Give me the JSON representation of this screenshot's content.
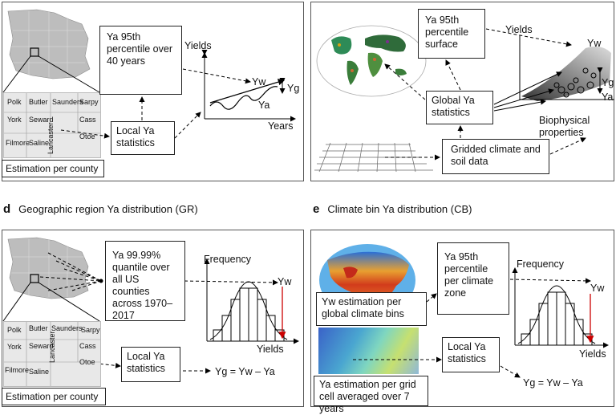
{
  "panel_a": {
    "counties": [
      "Polk",
      "Butler",
      "Saunders",
      "Sarpy",
      "York",
      "Seward",
      "Lancaster",
      "Cass",
      "Otoe",
      "Filmore",
      "Saline"
    ],
    "estimation": "Estimation per county",
    "box_95": "Ya 95th percentile over 40 years",
    "local": "Local Ya statistics",
    "yields": "Yields",
    "years": "Years",
    "yw": "Yw",
    "yg": "Yg",
    "ya": "Ya"
  },
  "panel_b": {
    "surface": "Ya 95th percentile surface",
    "yields": "Yields",
    "yw": "Yw",
    "yg": "Yg",
    "ya": "Ya",
    "global": "Global Ya statistics",
    "biophysical": "Biophysical properties",
    "gridded": "Gridded climate and soil data"
  },
  "panel_d": {
    "letter": "d",
    "title": "Geographic region Ya distribution (GR)",
    "counties": [
      "Polk",
      "Butler",
      "Saunders",
      "Sarpy",
      "York",
      "Seward",
      "Lancaster",
      "Cass",
      "Otoe",
      "Filmore",
      "Saline"
    ],
    "estimation": "Estimation per county",
    "box_9999": "Ya 99.99% quantile over all US counties across 1970–2017",
    "frequency": "Frequency",
    "yw": "Yw",
    "yields": "Yields",
    "local": "Local Ya statistics",
    "eq": "Yg = Yw – Ya"
  },
  "panel_e": {
    "letter": "e",
    "title": "Climate bin Ya distribution (CB)",
    "box_95": "Ya 95th percentile per climate zone",
    "frequency": "Frequency",
    "yw": "Yw",
    "yields": "Yields",
    "yw_est": "Yw estimation per global climate bins",
    "local": "Local Ya statistics",
    "ya_est": "Ya estimation per grid cell averaged over 7 years",
    "eq": "Yg = Yw – Ya"
  }
}
